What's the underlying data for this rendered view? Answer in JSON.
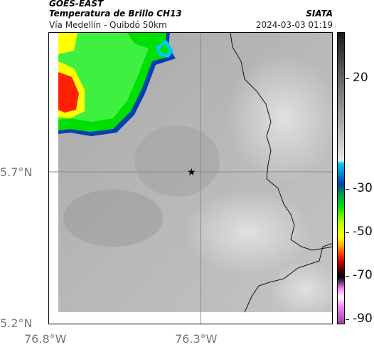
{
  "header": {
    "satellite": "GOES-EAST",
    "product": "Temperatura de Brillo CH13",
    "region": "Vía Medellín - Quibdó 50km",
    "org": "SIATA",
    "timestamp": "2024-03-03 01:19"
  },
  "axes": {
    "lat_labels": [
      "5.7°N",
      "5.2°N"
    ],
    "lon_labels": [
      "76.8°W",
      "76.3°W"
    ]
  },
  "colorbar": {
    "labels": [
      "20",
      "-30",
      "-50",
      "-70",
      "-90"
    ],
    "colors": [
      "#1a1a1a",
      "#cccccc",
      "#00c8ff",
      "#00e000",
      "#ffff00",
      "#ff4000",
      "#000000",
      "#ff80ff",
      "#a040a0"
    ]
  },
  "map": {
    "marker": "star-icon",
    "cloud_colors": [
      "#ff2000",
      "#ffff00",
      "#00e000",
      "#0040b0"
    ]
  }
}
